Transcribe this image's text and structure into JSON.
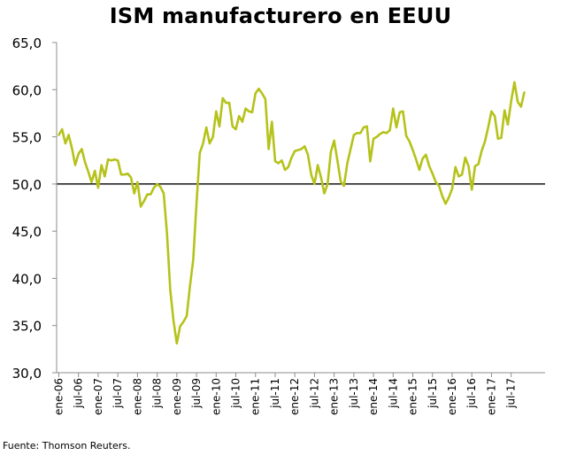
{
  "chart_data": {
    "type": "line",
    "title": "ISM manufacturero en EEUU",
    "xlabel": "",
    "ylabel": "",
    "ylim": [
      30,
      65
    ],
    "yticks": [
      "30,0",
      "35,0",
      "40,0",
      "45,0",
      "50,0",
      "55,0",
      "60,0",
      "65,0"
    ],
    "ytick_values": [
      30,
      35,
      40,
      45,
      50,
      55,
      60,
      65
    ],
    "reference_line": 50,
    "grid": false,
    "xtick_labels": [
      "ene-06",
      "jul-06",
      "ene-07",
      "jul-07",
      "ene-08",
      "jul-08",
      "ene-09",
      "jul-09",
      "ene-10",
      "jul-10",
      "ene-11",
      "jul-11",
      "ene-12",
      "jul-12",
      "ene-13",
      "jul-13",
      "ene-14",
      "jul-14",
      "ene-15",
      "jul-15",
      "ene-16",
      "jul-16",
      "ene-17",
      "jul-17"
    ],
    "series": [
      {
        "name": "ISM manufacturero",
        "color": "#b5c21a",
        "start": "ene-06",
        "frequency": "monthly",
        "values": [
          55.2,
          55.8,
          54.3,
          55.2,
          53.8,
          52.0,
          53.2,
          53.7,
          52.3,
          51.3,
          50.2,
          51.4,
          49.6,
          52.0,
          50.8,
          52.6,
          52.5,
          52.6,
          52.5,
          51.0,
          51.0,
          51.1,
          50.7,
          49.0,
          50.2,
          47.6,
          48.2,
          48.9,
          48.9,
          49.6,
          50.0,
          49.7,
          49.0,
          44.8,
          38.8,
          35.5,
          33.1,
          34.9,
          35.4,
          36.0,
          39.2,
          42.0,
          48.0,
          53.3,
          54.3,
          56.0,
          54.3,
          55.0,
          57.7,
          56.1,
          59.1,
          58.6,
          58.6,
          56.1,
          55.8,
          57.2,
          56.6,
          58.0,
          57.7,
          57.6,
          59.6,
          60.1,
          59.6,
          59.0,
          53.7,
          56.6,
          52.4,
          52.2,
          52.5,
          51.5,
          51.8,
          52.8,
          53.5,
          53.6,
          53.7,
          54.0,
          53.1,
          51.0,
          50.0,
          52.0,
          50.7,
          49.0,
          50.0,
          53.4,
          54.6,
          52.5,
          50.3,
          49.8,
          52.2,
          53.7,
          55.2,
          55.4,
          55.4,
          56.0,
          56.1,
          52.4,
          54.8,
          55.0,
          55.3,
          55.5,
          55.4,
          55.7,
          58.0,
          56.0,
          57.6,
          57.7,
          55.1,
          54.5,
          53.6,
          52.6,
          51.5,
          52.7,
          53.1,
          51.9,
          51.1,
          50.2,
          49.8,
          48.7,
          47.9,
          48.6,
          49.5,
          51.8,
          50.8,
          51.0,
          52.8,
          51.9,
          49.4,
          51.9,
          52.1,
          53.5,
          54.5,
          56.0,
          57.7,
          57.2,
          54.8,
          54.9,
          57.8,
          56.3,
          58.8,
          60.8,
          58.7,
          58.2,
          59.7
        ]
      }
    ],
    "source": "Fuente: Thomson Reuters."
  }
}
